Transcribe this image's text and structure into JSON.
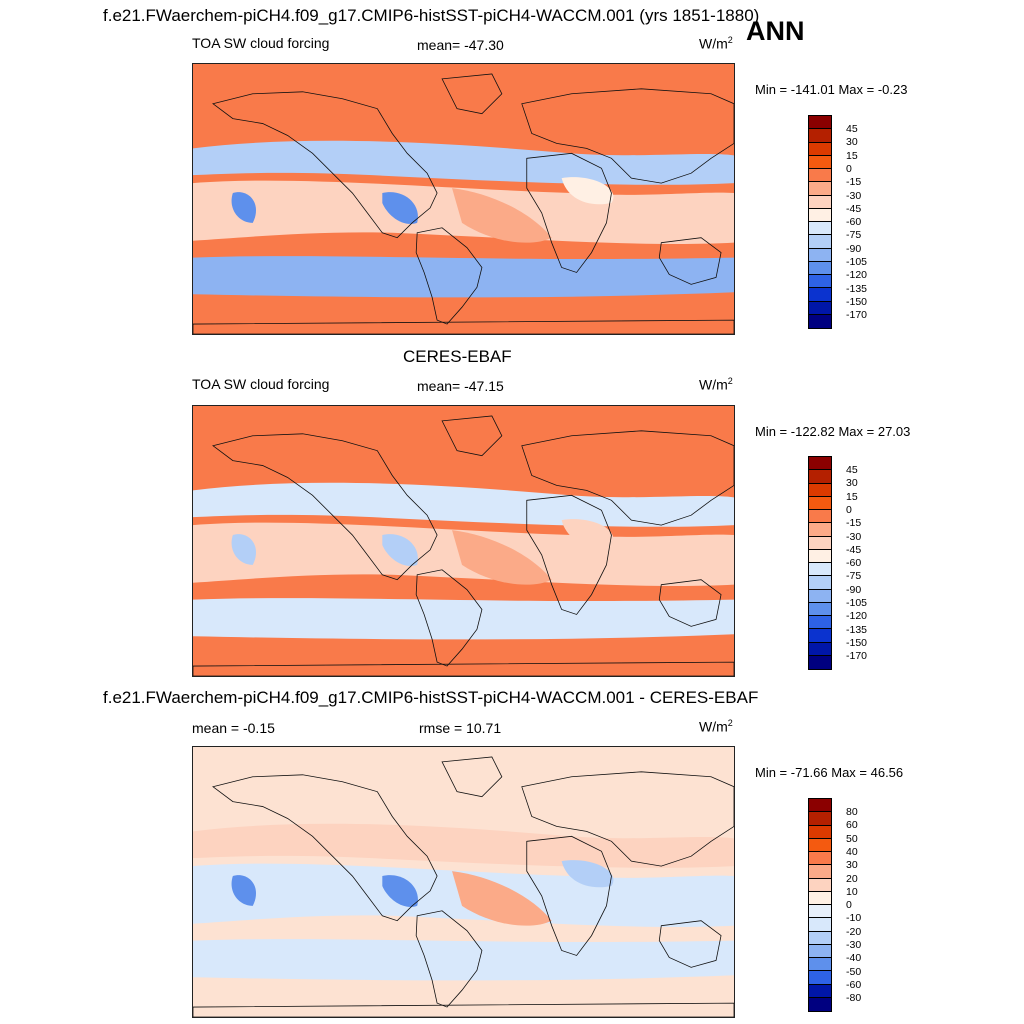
{
  "figure": {
    "season": "ANN",
    "panels": [
      {
        "id": "model",
        "title": "f.e21.FWaerchem-piCH4.f09_g17.CMIP6-histSST-piCH4-WACCM.001 (yrs 1851-1880)",
        "variable": "TOA SW cloud forcing",
        "stat": "mean= -47.30",
        "units_base": "W/m",
        "units_exp": "2",
        "minmax": "Min = -141.01 Max =  -0.23",
        "colorbar": {
          "levels": [
            "45",
            "30",
            "15",
            "0",
            "-15",
            "-30",
            "-45",
            "-60",
            "-75",
            "-90",
            "-105",
            "-120",
            "-135",
            "-150",
            "-170"
          ],
          "colors": [
            "#8b0000",
            "#b42000",
            "#dc3a00",
            "#f45a10",
            "#f97a4a",
            "#fbaa88",
            "#fdd3c0",
            "#fff0e4",
            "#d8e8fb",
            "#b3cff7",
            "#8db3f2",
            "#5e90ec",
            "#2e62e6",
            "#0b33cf",
            "#0016a8",
            "#000080"
          ]
        },
        "fill": "#f97a4a",
        "regions": [
          {
            "name": "tropical-pacific-band",
            "color": "#fdd3c0"
          },
          {
            "name": "southern-ocean-band",
            "color": "#8db3f2"
          },
          {
            "name": "north-pacific-band",
            "color": "#b3cff7"
          },
          {
            "name": "subtropical-stratocumulus",
            "color": "#fbaa88"
          },
          {
            "name": "tropical-convection",
            "color": "#5e90ec"
          },
          {
            "name": "equatorial-atlantic",
            "color": "#fff0e4"
          }
        ]
      },
      {
        "id": "obs",
        "title": "CERES-EBAF",
        "variable": "TOA SW cloud forcing",
        "stat": "mean= -47.15",
        "units_base": "W/m",
        "units_exp": "2",
        "minmax": "Min = -122.82 Max =  27.03",
        "colorbar": {
          "levels": [
            "45",
            "30",
            "15",
            "0",
            "-15",
            "-30",
            "-45",
            "-60",
            "-75",
            "-90",
            "-105",
            "-120",
            "-135",
            "-150",
            "-170"
          ],
          "colors": [
            "#8b0000",
            "#b42000",
            "#dc3a00",
            "#f45a10",
            "#f97a4a",
            "#fbaa88",
            "#fdd3c0",
            "#fff0e4",
            "#d8e8fb",
            "#b3cff7",
            "#8db3f2",
            "#5e90ec",
            "#2e62e6",
            "#0b33cf",
            "#0016a8",
            "#000080"
          ]
        },
        "fill": "#f97a4a",
        "regions": [
          {
            "name": "tropical-pacific-band",
            "color": "#fdd3c0"
          },
          {
            "name": "southern-ocean-band",
            "color": "#d8e8fb"
          },
          {
            "name": "north-pacific-band",
            "color": "#d8e8fb"
          },
          {
            "name": "subtropical-stratocumulus",
            "color": "#fbaa88"
          },
          {
            "name": "tropical-convection",
            "color": "#b3cff7"
          },
          {
            "name": "equatorial-atlantic",
            "color": "#fdd3c0"
          }
        ]
      },
      {
        "id": "diff",
        "title": "f.e21.FWaerchem-piCH4.f09_g17.CMIP6-histSST-piCH4-WACCM.001 - CERES-EBAF",
        "variable": "mean =  -0.15",
        "stat": "rmse =  10.71",
        "units_base": "W/m",
        "units_exp": "2",
        "minmax": "Min = -71.66 Max =  46.56",
        "colorbar": {
          "levels": [
            "80",
            "60",
            "50",
            "40",
            "30",
            "20",
            "10",
            "0",
            "-10",
            "-20",
            "-30",
            "-40",
            "-50",
            "-60",
            "-80"
          ],
          "colors": [
            "#8b0000",
            "#b42000",
            "#dc3a00",
            "#f45a10",
            "#f97a4a",
            "#fbaa88",
            "#fdd3c0",
            "#fff0e4",
            "#e8f0fb",
            "#d8e8fb",
            "#b3cff7",
            "#8db3f2",
            "#5e90ec",
            "#2e62e6",
            "#0016a8",
            "#000080"
          ]
        },
        "fill": "#fde2d2",
        "regions": [
          {
            "name": "tropical-pacific-band",
            "color": "#d8e8fb"
          },
          {
            "name": "southern-ocean-band",
            "color": "#d8e8fb"
          },
          {
            "name": "north-pacific-band",
            "color": "#fdd3c0"
          },
          {
            "name": "subtropical-stratocumulus",
            "color": "#fbaa88"
          },
          {
            "name": "tropical-convection",
            "color": "#5e90ec"
          },
          {
            "name": "equatorial-atlantic",
            "color": "#b3cff7"
          }
        ]
      }
    ]
  }
}
